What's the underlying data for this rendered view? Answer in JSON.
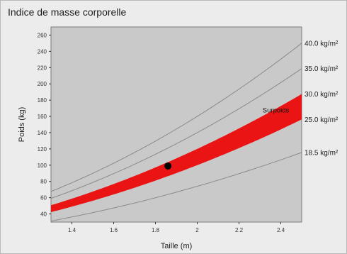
{
  "window": {
    "title": "Indice de masse corporelle"
  },
  "chart_data": {
    "type": "line",
    "title": "Indice de masse corporelle",
    "xlabel": "Taille (m)",
    "ylabel": "Poids (kg)",
    "xlim": [
      1.3,
      2.5
    ],
    "ylim": [
      30,
      270
    ],
    "x_ticks": [
      "1.4",
      "1.6",
      "1.8",
      "2",
      "2.2",
      "2.4"
    ],
    "y_ticks": [
      "40",
      "60",
      "80",
      "100",
      "120",
      "140",
      "160",
      "180",
      "200",
      "220",
      "240",
      "260"
    ],
    "grid": false,
    "background_color": "#c9c9c9",
    "curve_color": "#8a8a8a",
    "band_color": "#ea1414",
    "curves": [
      {
        "bmi": 40.0,
        "label": "40.0 kg/m²"
      },
      {
        "bmi": 35.0,
        "label": "35.0 kg/m²"
      },
      {
        "bmi": 30.0,
        "label": "30.0 kg/m²"
      },
      {
        "bmi": 25.0,
        "label": "25.0 kg/m²"
      },
      {
        "bmi": 18.5,
        "label": "18.5 kg/m²"
      }
    ],
    "band": {
      "bmi_low": 25.0,
      "bmi_high": 30.0,
      "label": "Surpoids"
    },
    "point": {
      "x": 1.86,
      "y": 99,
      "color": "#000000"
    }
  }
}
